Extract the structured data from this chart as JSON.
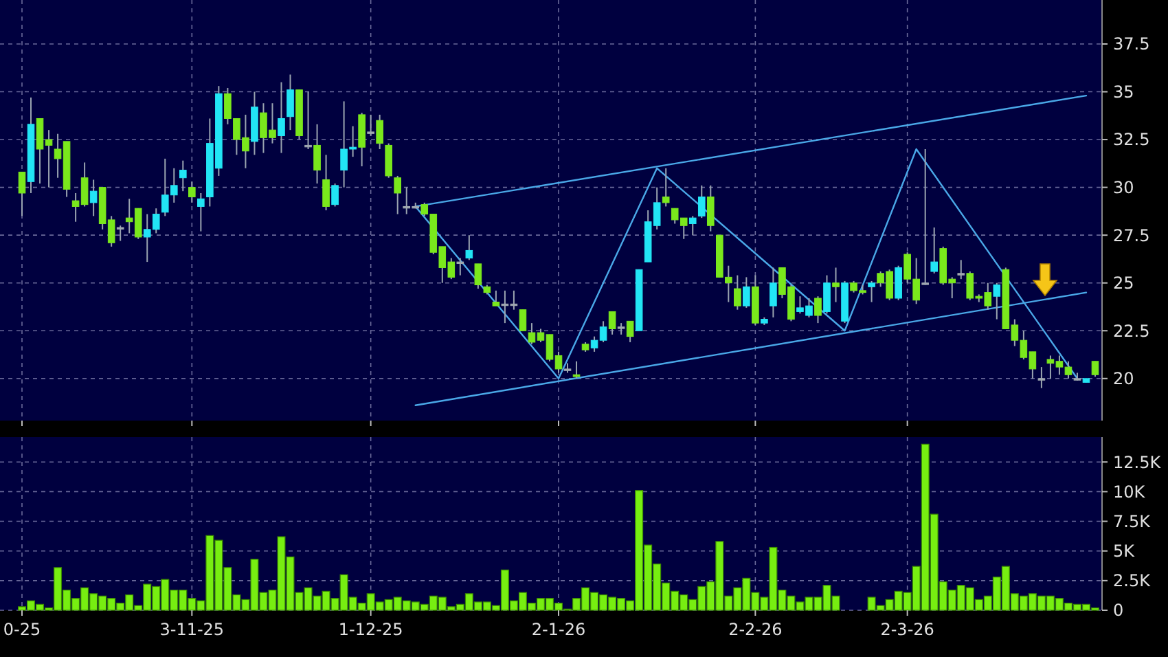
{
  "chart_data": [
    {
      "type": "candlestick",
      "ohlc": [
        [
          30.8,
          30.8,
          28.5,
          29.7
        ],
        [
          30.3,
          34.7,
          29.7,
          33.3
        ],
        [
          33.6,
          33.6,
          30.2,
          32.0
        ],
        [
          32.5,
          33.0,
          30.0,
          32.2
        ],
        [
          32.0,
          32.8,
          30.5,
          31.5
        ],
        [
          32.4,
          32.4,
          29.5,
          29.9
        ],
        [
          29.3,
          29.7,
          28.2,
          29.0
        ],
        [
          30.5,
          31.3,
          29.0,
          29.1
        ],
        [
          29.2,
          30.4,
          28.5,
          29.8
        ],
        [
          30.0,
          30.0,
          27.8,
          28.1
        ],
        [
          28.3,
          28.5,
          26.9,
          27.1
        ],
        [
          27.9,
          28.0,
          27.2,
          27.9
        ],
        [
          28.4,
          29.4,
          27.6,
          28.2
        ],
        [
          28.9,
          28.9,
          27.3,
          27.4
        ],
        [
          27.4,
          28.6,
          26.1,
          27.8
        ],
        [
          27.8,
          28.9,
          27.6,
          28.6
        ],
        [
          28.7,
          31.5,
          28.5,
          29.6
        ],
        [
          29.6,
          31.0,
          29.2,
          30.1
        ],
        [
          30.5,
          31.4,
          29.8,
          30.9
        ],
        [
          30.0,
          30.3,
          29.2,
          29.5
        ],
        [
          29.0,
          29.7,
          27.7,
          29.4
        ],
        [
          29.5,
          33.6,
          29.0,
          32.3
        ],
        [
          31.0,
          35.3,
          30.6,
          34.9
        ],
        [
          34.9,
          35.2,
          33.3,
          33.6
        ],
        [
          33.6,
          33.6,
          31.7,
          32.5
        ],
        [
          32.6,
          33.8,
          31.0,
          31.9
        ],
        [
          32.4,
          35.0,
          31.7,
          34.2
        ],
        [
          33.9,
          34.4,
          31.8,
          32.6
        ],
        [
          33.0,
          34.4,
          32.3,
          32.6
        ],
        [
          32.7,
          35.5,
          31.8,
          33.6
        ],
        [
          33.7,
          35.9,
          33.0,
          35.1
        ],
        [
          35.1,
          35.1,
          32.5,
          32.7
        ],
        [
          32.2,
          35.0,
          32.0,
          32.2
        ],
        [
          32.2,
          33.3,
          30.2,
          30.9
        ],
        [
          30.4,
          31.7,
          28.8,
          29.0
        ],
        [
          29.1,
          30.2,
          29.0,
          30.1
        ],
        [
          30.9,
          34.5,
          30.0,
          32.0
        ],
        [
          32.0,
          33.2,
          31.6,
          32.1
        ],
        [
          33.8,
          33.9,
          31.1,
          32.1
        ],
        [
          32.9,
          33.8,
          32.7,
          32.9
        ],
        [
          33.5,
          33.8,
          32.0,
          32.3
        ],
        [
          32.2,
          32.3,
          30.5,
          30.6
        ],
        [
          30.5,
          30.6,
          28.6,
          29.7
        ],
        [
          29.0,
          30.0,
          28.6,
          29.0
        ],
        [
          29.0,
          29.2,
          28.9,
          29.0
        ],
        [
          29.1,
          29.2,
          28.5,
          28.6
        ],
        [
          28.6,
          28.6,
          26.5,
          26.6
        ],
        [
          26.9,
          26.9,
          25.0,
          25.8
        ],
        [
          26.1,
          26.3,
          25.2,
          25.3
        ],
        [
          26.1,
          26.3,
          25.4,
          26.1
        ],
        [
          26.3,
          27.5,
          26.2,
          26.7
        ],
        [
          26.0,
          26.0,
          24.7,
          24.9
        ],
        [
          24.8,
          24.9,
          24.4,
          24.5
        ],
        [
          24.0,
          24.6,
          23.8,
          23.8
        ],
        [
          23.9,
          24.6,
          22.9,
          23.9
        ],
        [
          23.9,
          24.6,
          23.6,
          23.9
        ],
        [
          23.6,
          23.6,
          22.5,
          22.5
        ],
        [
          22.4,
          22.9,
          21.8,
          21.9
        ],
        [
          22.4,
          22.6,
          21.9,
          22.0
        ],
        [
          22.3,
          22.3,
          20.9,
          21.0
        ],
        [
          21.2,
          21.4,
          20.3,
          20.5
        ],
        [
          20.5,
          20.8,
          20.3,
          20.5
        ],
        [
          20.2,
          20.9,
          20.0,
          20.1
        ],
        [
          21.8,
          21.9,
          21.4,
          21.5
        ],
        [
          21.6,
          22.2,
          21.4,
          22.0
        ],
        [
          22.0,
          23.0,
          21.9,
          22.7
        ],
        [
          23.5,
          23.5,
          22.3,
          22.6
        ],
        [
          22.7,
          22.9,
          22.3,
          22.7
        ],
        [
          23.0,
          23.0,
          21.9,
          22.2
        ],
        [
          22.5,
          25.7,
          22.5,
          25.7
        ],
        [
          26.1,
          28.8,
          26.1,
          28.2
        ],
        [
          28.0,
          30.0,
          27.8,
          29.2
        ],
        [
          29.5,
          31.0,
          29.0,
          29.2
        ],
        [
          28.9,
          28.9,
          28.1,
          28.3
        ],
        [
          28.4,
          28.4,
          27.3,
          28.0
        ],
        [
          28.1,
          28.5,
          27.5,
          28.4
        ],
        [
          28.5,
          30.1,
          28.4,
          29.5
        ],
        [
          29.5,
          30.1,
          27.7,
          28.0
        ],
        [
          27.5,
          27.5,
          25.3,
          25.3
        ],
        [
          25.3,
          25.9,
          24.0,
          25.0
        ],
        [
          24.7,
          25.4,
          23.6,
          23.8
        ],
        [
          23.8,
          25.3,
          23.7,
          24.8
        ],
        [
          24.8,
          25.4,
          22.8,
          22.9
        ],
        [
          22.9,
          23.2,
          22.8,
          23.1
        ],
        [
          23.8,
          25.8,
          23.2,
          25.0
        ],
        [
          25.8,
          25.8,
          24.2,
          24.4
        ],
        [
          24.8,
          24.9,
          23.0,
          23.1
        ],
        [
          23.5,
          24.3,
          23.4,
          23.7
        ],
        [
          23.3,
          24.2,
          23.2,
          23.8
        ],
        [
          24.2,
          24.3,
          22.9,
          23.3
        ],
        [
          23.5,
          25.4,
          23.4,
          25.0
        ],
        [
          25.0,
          25.8,
          24.0,
          24.8
        ],
        [
          23.0,
          25.1,
          22.9,
          25.0
        ],
        [
          25.0,
          25.1,
          24.5,
          24.6
        ],
        [
          24.6,
          24.9,
          24.4,
          24.5
        ],
        [
          24.8,
          25.1,
          24.0,
          25.0
        ],
        [
          25.5,
          25.6,
          24.8,
          25.0
        ],
        [
          25.6,
          25.7,
          24.1,
          24.2
        ],
        [
          24.2,
          25.9,
          24.1,
          25.8
        ],
        [
          26.5,
          26.6,
          25.0,
          25.2
        ],
        [
          25.2,
          26.3,
          23.9,
          24.1
        ],
        [
          25.0,
          32.0,
          24.9,
          25.0
        ],
        [
          25.6,
          27.9,
          25.5,
          26.1
        ],
        [
          26.8,
          26.9,
          24.9,
          25.0
        ],
        [
          25.2,
          25.3,
          24.2,
          25.0
        ],
        [
          25.5,
          26.2,
          25.2,
          25.5
        ],
        [
          25.5,
          25.6,
          24.1,
          24.2
        ],
        [
          24.3,
          24.4,
          24.0,
          24.2
        ],
        [
          24.5,
          25.0,
          23.6,
          23.8
        ],
        [
          24.3,
          25.0,
          23.1,
          24.9
        ],
        [
          25.7,
          25.8,
          22.6,
          22.6
        ],
        [
          22.8,
          23.1,
          21.7,
          22.0
        ],
        [
          22.0,
          22.5,
          21.0,
          21.1
        ],
        [
          21.4,
          21.4,
          20.0,
          20.5
        ],
        [
          20.0,
          20.6,
          19.5,
          20.0
        ],
        [
          21.0,
          21.2,
          20.0,
          20.8
        ],
        [
          20.9,
          21.2,
          20.2,
          20.6
        ],
        [
          20.6,
          20.9,
          20.0,
          20.2
        ],
        [
          20.0,
          20.3,
          19.9,
          20.0
        ],
        [
          19.8,
          20.0,
          19.8,
          20.0
        ],
        [
          20.9,
          20.9,
          20.1,
          20.2
        ]
      ],
      "colors": [
        "#7ae81c",
        "#22e5f5",
        "#7ae81c",
        "#7ae81c",
        "#7ae81c",
        "#7ae81c",
        "#7ae81c",
        "#7ae81c",
        "#22e5f5",
        "#7ae81c",
        "#7ae81c",
        "#a0a8b0",
        "#7ae81c",
        "#7ae81c",
        "#22e5f5",
        "#22e5f5",
        "#22e5f5",
        "#22e5f5",
        "#22e5f5",
        "#7ae81c",
        "#22e5f5",
        "#22e5f5",
        "#22e5f5",
        "#7ae81c",
        "#7ae81c",
        "#7ae81c",
        "#22e5f5",
        "#7ae81c",
        "#7ae81c",
        "#22e5f5",
        "#22e5f5",
        "#7ae81c",
        "#a0a8b0",
        "#7ae81c",
        "#7ae81c",
        "#22e5f5",
        "#22e5f5",
        "#22e5f5",
        "#7ae81c",
        "#a0a8b0",
        "#7ae81c",
        "#7ae81c",
        "#7ae81c",
        "#a0a8b0",
        "#a0a8b0",
        "#7ae81c",
        "#7ae81c",
        "#7ae81c",
        "#7ae81c",
        "#a0a8b0",
        "#22e5f5",
        "#7ae81c",
        "#7ae81c",
        "#7ae81c",
        "#a0a8b0",
        "#a0a8b0",
        "#7ae81c",
        "#7ae81c",
        "#7ae81c",
        "#7ae81c",
        "#7ae81c",
        "#a0a8b0",
        "#7ae81c",
        "#7ae81c",
        "#22e5f5",
        "#22e5f5",
        "#7ae81c",
        "#a0a8b0",
        "#7ae81c",
        "#22e5f5",
        "#22e5f5",
        "#22e5f5",
        "#7ae81c",
        "#7ae81c",
        "#7ae81c",
        "#22e5f5",
        "#22e5f5",
        "#7ae81c",
        "#7ae81c",
        "#7ae81c",
        "#7ae81c",
        "#22e5f5",
        "#7ae81c",
        "#22e5f5",
        "#22e5f5",
        "#7ae81c",
        "#7ae81c",
        "#22e5f5",
        "#22e5f5",
        "#7ae81c",
        "#22e5f5",
        "#7ae81c",
        "#22e5f5",
        "#7ae81c",
        "#7ae81c",
        "#22e5f5",
        "#7ae81c",
        "#7ae81c",
        "#22e5f5",
        "#7ae81c",
        "#7ae81c",
        "#a0a8b0",
        "#22e5f5",
        "#7ae81c",
        "#7ae81c",
        "#a0a8b0",
        "#7ae81c",
        "#7ae81c",
        "#7ae81c",
        "#22e5f5",
        "#7ae81c",
        "#7ae81c",
        "#7ae81c",
        "#7ae81c",
        "#a0a8b0",
        "#7ae81c",
        "#7ae81c",
        "#7ae81c",
        "#a0a8b0",
        "#22e5f5",
        "#7ae81c"
      ],
      "series": [
        {
          "type": "line",
          "color": "#4aa8e8",
          "values": [
            null,
            null,
            null,
            null,
            null,
            null,
            null,
            null,
            null,
            null,
            null,
            null,
            null,
            null,
            null,
            null,
            null,
            null,
            null,
            null,
            null,
            null,
            null,
            null,
            null,
            null,
            null,
            null,
            null,
            null,
            null,
            null,
            null,
            null,
            null,
            null,
            null,
            null,
            null,
            null,
            null,
            null,
            null,
            null,
            29.0,
            null,
            null,
            null,
            null,
            null,
            null,
            null,
            null,
            null,
            null,
            null,
            null,
            null,
            null,
            null,
            null,
            null,
            null,
            null,
            null,
            null,
            null,
            null,
            null,
            null,
            null,
            null,
            null,
            null,
            null,
            null,
            null,
            null,
            null,
            null,
            null,
            null,
            null,
            null,
            null,
            null,
            null,
            null,
            null,
            null,
            null,
            null,
            null,
            null,
            null,
            null,
            null,
            null,
            null,
            null,
            null,
            null,
            null,
            null,
            null,
            null,
            null,
            null,
            null,
            null,
            null,
            null,
            null,
            null,
            null,
            null,
            null,
            null,
            null,
            34.8,
            null
          ]
        },
        {
          "type": "line",
          "color": "#4aa8e8",
          "values": [
            null,
            null,
            null,
            null,
            null,
            null,
            null,
            null,
            null,
            null,
            null,
            null,
            null,
            null,
            null,
            null,
            null,
            null,
            null,
            null,
            null,
            null,
            null,
            null,
            null,
            null,
            null,
            null,
            null,
            null,
            null,
            null,
            null,
            null,
            null,
            null,
            null,
            null,
            null,
            null,
            null,
            null,
            null,
            null,
            18.6,
            null,
            null,
            null,
            null,
            null,
            null,
            null,
            null,
            null,
            null,
            null,
            null,
            null,
            null,
            null,
            null,
            null,
            null,
            null,
            null,
            null,
            null,
            null,
            null,
            null,
            null,
            null,
            null,
            null,
            null,
            null,
            null,
            null,
            null,
            null,
            null,
            null,
            null,
            null,
            null,
            null,
            null,
            null,
            null,
            null,
            null,
            null,
            null,
            null,
            null,
            null,
            null,
            null,
            null,
            null,
            null,
            null,
            null,
            null,
            null,
            null,
            null,
            null,
            null,
            null,
            null,
            null,
            null,
            null,
            null,
            null,
            null,
            null,
            null,
            24.5,
            null
          ]
        },
        {
          "type": "line",
          "color": "#4aa8e8",
          "values": [
            null,
            null,
            null,
            null,
            null,
            null,
            null,
            null,
            null,
            null,
            null,
            null,
            null,
            null,
            null,
            null,
            null,
            null,
            null,
            null,
            null,
            null,
            null,
            null,
            null,
            null,
            null,
            null,
            null,
            null,
            null,
            null,
            null,
            null,
            null,
            null,
            null,
            null,
            null,
            null,
            null,
            null,
            null,
            null,
            29.0,
            null,
            null,
            null,
            null,
            null,
            null,
            null,
            null,
            null,
            null,
            null,
            null,
            null,
            null,
            null,
            20.0,
            null,
            null,
            null,
            null,
            null,
            null,
            null,
            null,
            null,
            null,
            31.0,
            null,
            null,
            null,
            null,
            null,
            null,
            null,
            null,
            null,
            null,
            null,
            null,
            null,
            null,
            null,
            null,
            null,
            null,
            null,
            null,
            22.5,
            null,
            null,
            null,
            null,
            null,
            null,
            null,
            32.0,
            null,
            null,
            null,
            null,
            null,
            null,
            null,
            null,
            null,
            null,
            null,
            null,
            null,
            null,
            null,
            null,
            null,
            20.0,
            null
          ]
        }
      ],
      "ylim": [
        17.8,
        39.8
      ],
      "yticks": [
        20,
        22.5,
        25,
        27.5,
        30,
        32.5,
        35,
        37.5
      ],
      "grid": true,
      "tick_labels": "y"
    },
    {
      "type": "bar",
      "categories": [
        "0-25",
        null,
        null,
        null,
        null,
        null,
        null,
        null,
        null,
        null,
        null,
        null,
        null,
        null,
        null,
        null,
        null,
        null,
        null,
        "3-11-25",
        null,
        null,
        null,
        null,
        null,
        null,
        null,
        null,
        null,
        null,
        null,
        null,
        null,
        null,
        null,
        null,
        null,
        null,
        null,
        "1-12-25",
        null,
        null,
        null,
        null,
        null,
        null,
        null,
        null,
        null,
        null,
        null,
        null,
        null,
        null,
        null,
        null,
        null,
        null,
        null,
        null,
        "2-1-26",
        null,
        null,
        null,
        null,
        null,
        null,
        null,
        null,
        null,
        null,
        null,
        null,
        null,
        null,
        null,
        null,
        null,
        null,
        null,
        null,
        null,
        "2-2-26",
        null,
        null,
        null,
        null,
        null,
        null,
        null,
        null,
        null,
        null,
        null,
        null,
        null,
        null,
        null,
        null,
        "2-3-26",
        null,
        null,
        null,
        null,
        null,
        null,
        null,
        null,
        null,
        null,
        null,
        null,
        null,
        null,
        null,
        null,
        null,
        null,
        null,
        null,
        null
      ],
      "values": [
        0.3,
        0.8,
        0.5,
        0.2,
        3.6,
        1.7,
        1.0,
        1.9,
        1.4,
        1.2,
        1.0,
        0.6,
        1.3,
        0.4,
        2.2,
        2.0,
        2.6,
        1.7,
        1.7,
        1.0,
        0.8,
        6.3,
        5.9,
        3.6,
        1.3,
        0.9,
        4.3,
        1.5,
        1.7,
        6.2,
        4.5,
        1.5,
        1.9,
        1.2,
        1.6,
        1.0,
        3.0,
        1.1,
        0.6,
        1.4,
        0.7,
        0.9,
        1.1,
        0.8,
        0.7,
        0.5,
        1.2,
        1.1,
        0.3,
        0.5,
        1.4,
        0.7,
        0.7,
        0.4,
        3.4,
        0.8,
        1.5,
        0.6,
        1.0,
        1.0,
        0.6,
        0.1,
        1.0,
        1.9,
        1.5,
        1.3,
        1.1,
        1.0,
        0.8,
        10.1,
        5.5,
        3.9,
        2.3,
        1.6,
        1.3,
        0.9,
        2.0,
        2.4,
        5.8,
        1.2,
        1.9,
        2.7,
        1.5,
        1.1,
        5.3,
        1.7,
        1.2,
        0.7,
        1.1,
        1.1,
        2.1,
        1.2,
        0,
        0,
        0,
        1.1,
        0.4,
        0.9,
        1.6,
        1.5,
        3.7,
        14.0,
        8.1,
        2.4,
        1.7,
        2.1,
        1.9,
        0.9,
        1.2,
        2.8,
        3.7,
        1.4,
        1.2,
        1.4,
        1.2,
        1.2,
        1.0,
        0.6,
        0.5,
        0.5,
        0.2
      ],
      "color": "#77ee11",
      "ylim": [
        0,
        14.6
      ],
      "yticks": [
        0,
        {
          "value": 2.5,
          "label": "2.5K"
        },
        {
          "value": 5,
          "label": "5K"
        },
        {
          "value": 7.5,
          "label": "7.5K"
        },
        {
          "value": 10,
          "label": "10K"
        },
        {
          "value": 12.5,
          "label": "12.5K"
        }
      ],
      "grid": true
    }
  ]
}
